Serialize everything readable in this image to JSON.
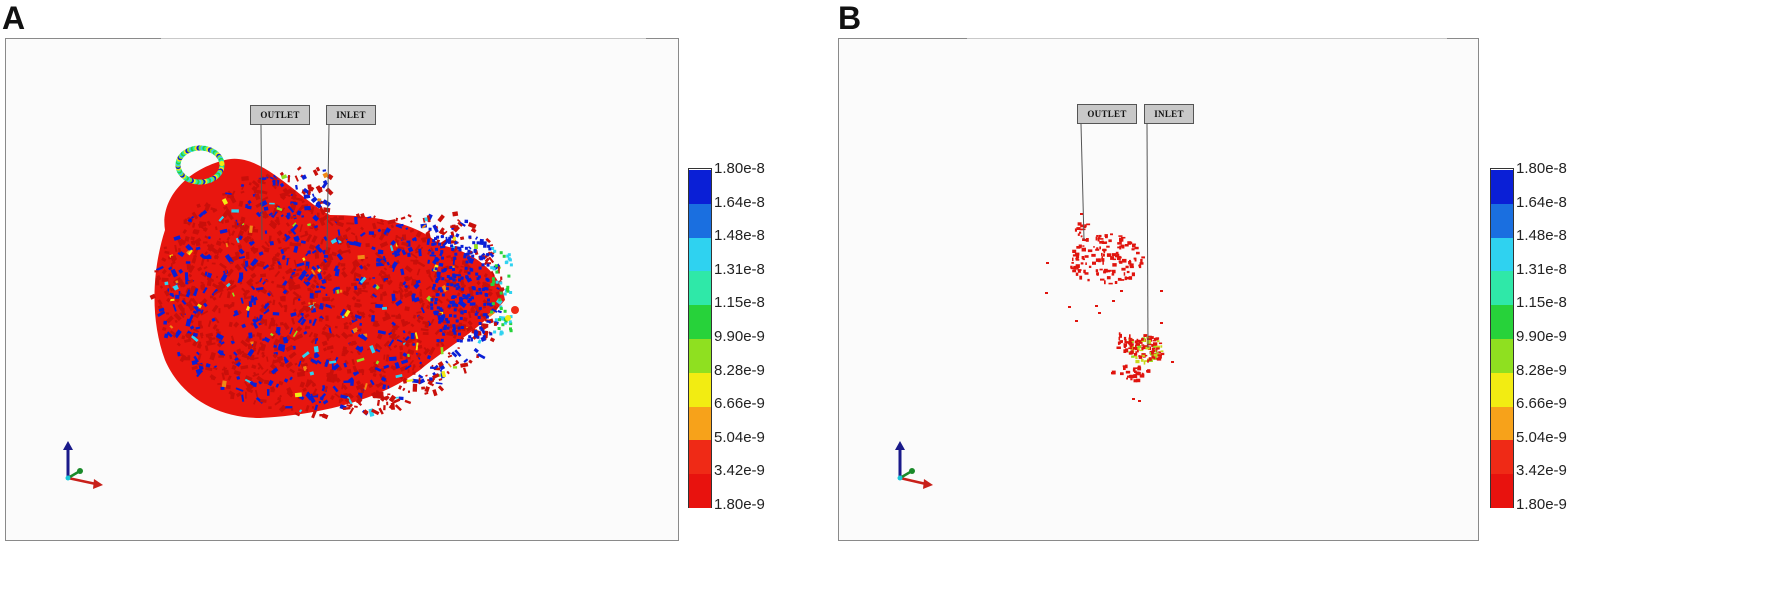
{
  "panels": [
    {
      "letter": "A",
      "outlet_label": "OUTLET",
      "inlet_label": "INLET",
      "legend_ticks": [
        "1.80e-8",
        "1.64e-8",
        "1.48e-8",
        "1.31e-8",
        "1.15e-8",
        "9.90e-9",
        "8.28e-9",
        "6.66e-9",
        "5.04e-9",
        "3.42e-9",
        "1.80e-9"
      ]
    },
    {
      "letter": "B",
      "outlet_label": "OUTLET",
      "inlet_label": "INLET",
      "legend_ticks": [
        "1.80e-8",
        "1.64e-8",
        "1.48e-8",
        "1.31e-8",
        "1.15e-8",
        "9.90e-9",
        "8.28e-9",
        "6.66e-9",
        "5.04e-9",
        "3.42e-9",
        "1.80e-9"
      ]
    }
  ],
  "colors": {
    "scale_top_to_bottom": [
      "#0a1fd6",
      "#1a6fe0",
      "#2fd2f0",
      "#2fe8a8",
      "#27d23a",
      "#8fe020",
      "#f2ec12",
      "#f7a21a",
      "#ef2a16",
      "#e8120e"
    ],
    "bulk_red": "#e8160f",
    "high_blue": "#0a1fd6"
  }
}
